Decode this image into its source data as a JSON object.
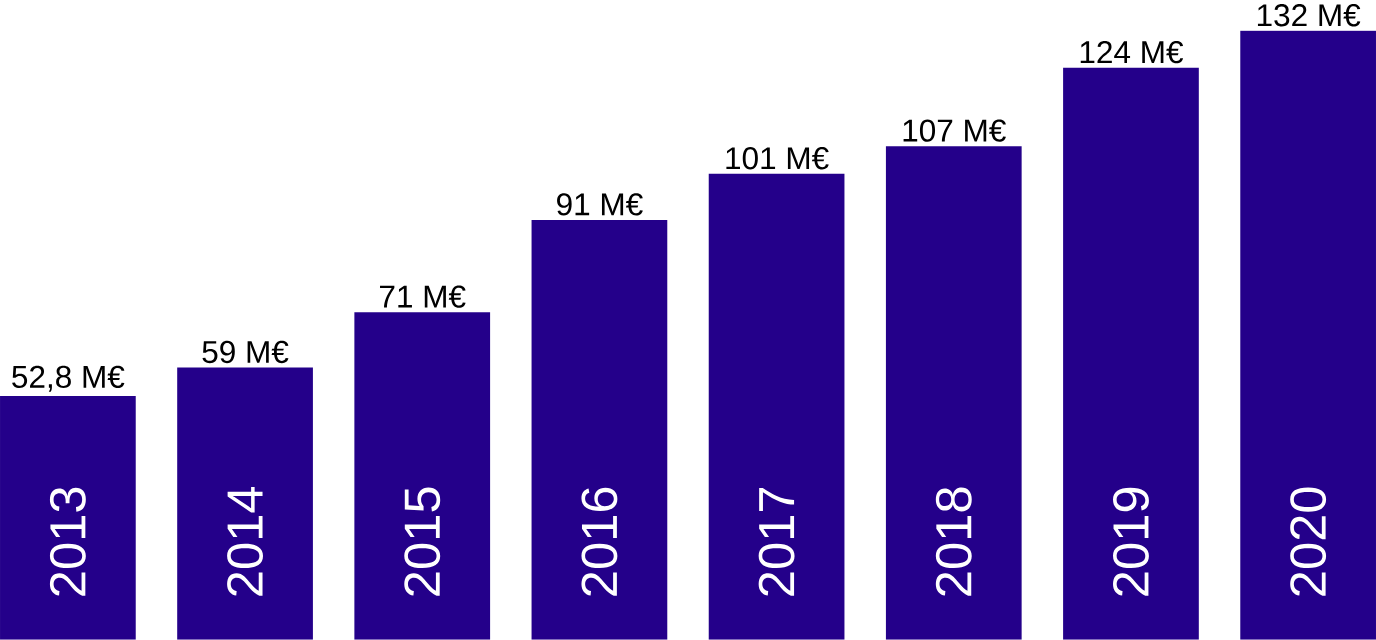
{
  "chart_data": {
    "type": "bar",
    "categories": [
      "2013",
      "2014",
      "2015",
      "2016",
      "2017",
      "2018",
      "2019",
      "2020"
    ],
    "values": [
      52.8,
      59,
      71,
      91,
      101,
      107,
      124,
      132
    ],
    "value_labels": [
      "52,8 M€",
      "59 M€",
      "71 M€",
      "91 M€",
      "101 M€",
      "107 M€",
      "124 M€",
      "132 M€"
    ],
    "color": "#24008a"
  }
}
